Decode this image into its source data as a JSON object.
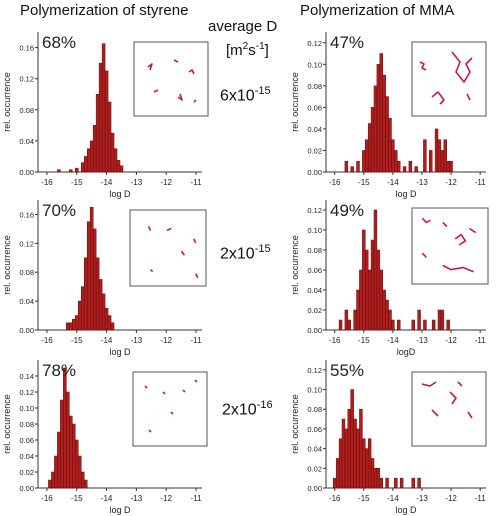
{
  "headers": {
    "left": "Polymerization of styrene",
    "center_top": "average D",
    "center_unit_base": "[m",
    "center_unit_sup1": "2",
    "center_unit_mid": "s",
    "center_unit_sup2": "-1",
    "center_unit_end": "]",
    "right": "Polymerization of MMA"
  },
  "row_labels": [
    {
      "mantissa": "6x10",
      "exponent": "-15"
    },
    {
      "mantissa": "2x10",
      "exponent": "-15"
    },
    {
      "mantissa": "2x10",
      "exponent": "-16"
    }
  ],
  "colors": {
    "bar": "#b11e1e",
    "bar_edge": "#5a0c0c",
    "track": "#c2185b",
    "axis": "#333333",
    "inset_border": "#555555"
  },
  "chart_data": [
    {
      "type": "bar",
      "panel": "styrene-1",
      "percent": "68%",
      "xlabel": "log D",
      "ylabel": "rel. occurrence",
      "xlim": [
        -16.3,
        -10.8
      ],
      "ylim": [
        0,
        0.18
      ],
      "xticks": [
        "-16",
        "-15",
        "-14",
        "-13",
        "-12",
        "-11"
      ],
      "yticks": [
        "0.00",
        "0.04",
        "0.08",
        "0.12",
        "0.16"
      ],
      "bin_width": 0.1,
      "bins": [
        [
          -15.6,
          0.003
        ],
        [
          -15.2,
          0.003
        ],
        [
          -15.0,
          0.005
        ],
        [
          -14.8,
          0.012
        ],
        [
          -14.7,
          0.02
        ],
        [
          -14.6,
          0.03
        ],
        [
          -14.5,
          0.04
        ],
        [
          -14.4,
          0.06
        ],
        [
          -14.3,
          0.1
        ],
        [
          -14.2,
          0.14
        ],
        [
          -14.1,
          0.165
        ],
        [
          -14.0,
          0.13
        ],
        [
          -13.9,
          0.09
        ],
        [
          -13.8,
          0.05
        ],
        [
          -13.7,
          0.03
        ],
        [
          -13.6,
          0.015
        ],
        [
          -13.5,
          0.008
        ]
      ]
    },
    {
      "type": "bar",
      "panel": "mma-1",
      "percent": "47%",
      "xlabel": "log D",
      "ylabel": "rel. occurrence",
      "xlim": [
        -16.3,
        -10.8
      ],
      "ylim": [
        0,
        0.13
      ],
      "xticks": [
        "-16",
        "-15",
        "-14",
        "-13",
        "-12",
        "-11"
      ],
      "yticks": [
        "0.00",
        "0.02",
        "0.04",
        "0.06",
        "0.08",
        "0.10",
        "0.12"
      ],
      "bin_width": 0.1,
      "bins": [
        [
          -15.6,
          0.01
        ],
        [
          -15.4,
          0.005
        ],
        [
          -15.2,
          0.01
        ],
        [
          -15.0,
          0.02
        ],
        [
          -14.9,
          0.03
        ],
        [
          -14.8,
          0.045
        ],
        [
          -14.7,
          0.06
        ],
        [
          -14.6,
          0.08
        ],
        [
          -14.5,
          0.1
        ],
        [
          -14.4,
          0.11
        ],
        [
          -14.3,
          0.09
        ],
        [
          -14.2,
          0.07
        ],
        [
          -14.1,
          0.05
        ],
        [
          -14.0,
          0.03
        ],
        [
          -13.9,
          0.02
        ],
        [
          -13.8,
          0.01
        ],
        [
          -13.6,
          0.005
        ],
        [
          -13.4,
          0.01
        ],
        [
          -13.2,
          0.005
        ],
        [
          -12.9,
          0.03
        ],
        [
          -12.7,
          0.02
        ],
        [
          -12.5,
          0.04
        ],
        [
          -12.4,
          0.03
        ],
        [
          -12.3,
          0.02
        ],
        [
          -12.2,
          0.03
        ],
        [
          -12.1,
          0.01
        ],
        [
          -12.0,
          0.01
        ]
      ]
    },
    {
      "type": "bar",
      "panel": "styrene-2",
      "percent": "70%",
      "xlabel": "log D",
      "ylabel": "rel. occurrence",
      "xlim": [
        -16.3,
        -10.8
      ],
      "ylim": [
        0,
        0.18
      ],
      "xticks": [
        "-16",
        "-15",
        "-14",
        "-13",
        "-12",
        "-11"
      ],
      "yticks": [
        "0.00",
        "0.04",
        "0.08",
        "0.12",
        "0.16"
      ],
      "bin_width": 0.1,
      "bins": [
        [
          -15.3,
          0.01
        ],
        [
          -15.2,
          0.01
        ],
        [
          -15.1,
          0.015
        ],
        [
          -15.0,
          0.02
        ],
        [
          -14.9,
          0.04
        ],
        [
          -14.8,
          0.06
        ],
        [
          -14.7,
          0.1
        ],
        [
          -14.6,
          0.15
        ],
        [
          -14.5,
          0.17
        ],
        [
          -14.4,
          0.14
        ],
        [
          -14.3,
          0.1
        ],
        [
          -14.2,
          0.07
        ],
        [
          -14.1,
          0.05
        ],
        [
          -14.0,
          0.03
        ],
        [
          -13.9,
          0.02
        ],
        [
          -13.8,
          0.01
        ]
      ]
    },
    {
      "type": "bar",
      "panel": "mma-2",
      "percent": "49%",
      "xlabel": "logD",
      "ylabel": "rel. occurrence",
      "xlim": [
        -16.3,
        -10.8
      ],
      "ylim": [
        0,
        0.13
      ],
      "xticks": [
        "-16",
        "-15",
        "-14",
        "-13",
        "-12",
        "-11"
      ],
      "yticks": [
        "0.00",
        "0.02",
        "0.04",
        "0.06",
        "0.08",
        "0.10",
        "0.12"
      ],
      "bin_width": 0.1,
      "bins": [
        [
          -15.8,
          0.01
        ],
        [
          -15.6,
          0.02
        ],
        [
          -15.5,
          0.01
        ],
        [
          -15.3,
          0.02
        ],
        [
          -15.2,
          0.04
        ],
        [
          -15.1,
          0.06
        ],
        [
          -15.0,
          0.1
        ],
        [
          -14.9,
          0.08
        ],
        [
          -14.8,
          0.06
        ],
        [
          -14.7,
          0.09
        ],
        [
          -14.6,
          0.12
        ],
        [
          -14.5,
          0.08
        ],
        [
          -14.4,
          0.06
        ],
        [
          -14.3,
          0.04
        ],
        [
          -14.2,
          0.03
        ],
        [
          -14.1,
          0.02
        ],
        [
          -14.0,
          0.01
        ],
        [
          -13.8,
          0.01
        ],
        [
          -13.3,
          0.01
        ],
        [
          -13.1,
          0.02
        ],
        [
          -12.9,
          0.01
        ],
        [
          -12.6,
          0.01
        ],
        [
          -12.4,
          0.02
        ],
        [
          -12.3,
          0.02
        ],
        [
          -12.1,
          0.01
        ]
      ]
    },
    {
      "type": "bar",
      "panel": "styrene-3",
      "percent": "78%",
      "xlabel": "log D",
      "ylabel": "rel. occurrence",
      "xlim": [
        -16.3,
        -10.8
      ],
      "ylim": [
        0,
        0.16
      ],
      "xticks": [
        "-16",
        "-15",
        "-14",
        "-13",
        "-12",
        "-11"
      ],
      "yticks": [
        "0.00",
        "0.02",
        "0.04",
        "0.06",
        "0.08",
        "0.10",
        "0.12",
        "0.14"
      ],
      "bin_width": 0.1,
      "bins": [
        [
          -15.9,
          0.01
        ],
        [
          -15.8,
          0.02
        ],
        [
          -15.7,
          0.04
        ],
        [
          -15.6,
          0.07
        ],
        [
          -15.5,
          0.11
        ],
        [
          -15.4,
          0.15
        ],
        [
          -15.3,
          0.12
        ],
        [
          -15.2,
          0.09
        ],
        [
          -15.1,
          0.08
        ],
        [
          -15.0,
          0.06
        ],
        [
          -14.9,
          0.04
        ],
        [
          -14.8,
          0.02
        ],
        [
          -14.7,
          0.01
        ]
      ]
    },
    {
      "type": "bar",
      "panel": "mma-3",
      "percent": "55%",
      "xlabel": "log D",
      "ylabel": "rel. occurrence",
      "xlim": [
        -16.3,
        -10.8
      ],
      "ylim": [
        0,
        0.13
      ],
      "xticks": [
        "-16",
        "-15",
        "-14",
        "-13",
        "-12",
        "-11"
      ],
      "yticks": [
        "0.00",
        "0.02",
        "0.04",
        "0.06",
        "0.08",
        "0.10",
        "0.12"
      ],
      "bin_width": 0.1,
      "bins": [
        [
          -16.0,
          0.01
        ],
        [
          -15.9,
          0.03
        ],
        [
          -15.8,
          0.05
        ],
        [
          -15.7,
          0.07
        ],
        [
          -15.6,
          0.06
        ],
        [
          -15.5,
          0.08
        ],
        [
          -15.4,
          0.1
        ],
        [
          -15.3,
          0.07
        ],
        [
          -15.2,
          0.06
        ],
        [
          -15.1,
          0.08
        ],
        [
          -15.0,
          0.05
        ],
        [
          -14.9,
          0.04
        ],
        [
          -14.8,
          0.05
        ],
        [
          -14.7,
          0.03
        ],
        [
          -14.6,
          0.02
        ],
        [
          -14.5,
          0.02
        ],
        [
          -14.4,
          0.01
        ],
        [
          -14.2,
          0.01
        ],
        [
          -13.9,
          0.01
        ],
        [
          -13.7,
          0.01
        ],
        [
          -13.3,
          0.01
        ],
        [
          -13.1,
          0.01
        ]
      ]
    }
  ]
}
